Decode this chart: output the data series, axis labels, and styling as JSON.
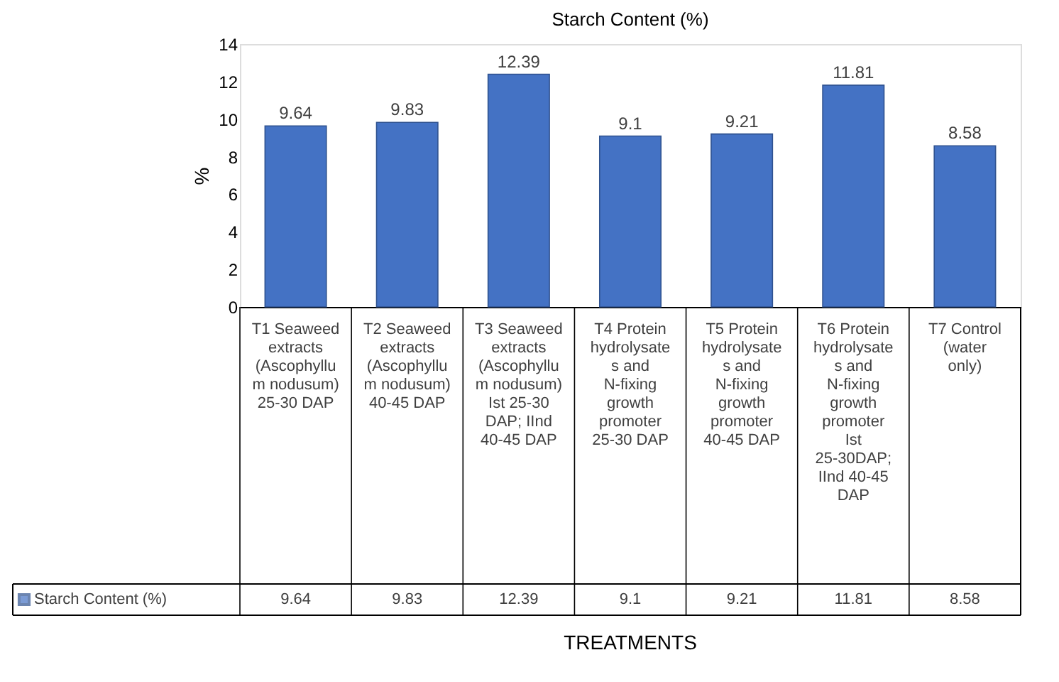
{
  "chart_data": {
    "type": "bar",
    "title": "Starch Content (%)",
    "ylabel": "%",
    "annotations": [
      "TREATMENTS"
    ],
    "categories": [
      "T1 Seaweed extracts (Ascophyllum nodusum) 25-30 DAP",
      "T2 Seaweed extracts (Ascophyllum nodusum) 40-45 DAP",
      "T3 Seaweed extracts (Ascophyllum nodusum) Ist 25-30 DAP; IInd 40-45 DAP",
      "T4 Protein hydrolysates and N-fixing growth promoter 25-30 DAP",
      "T5 Protein hydrolysates and N-fixing growth promoter 40-45 DAP",
      "T6 Protein hydrolysates and N-fixing growth promoter Ist 25-30DAP; IInd 40-45 DAP",
      "T7 Control (water only)"
    ],
    "series": [
      {
        "name": "Starch Content (%)",
        "color": "#4472c4",
        "values": [
          9.64,
          9.83,
          12.39,
          9.1,
          9.21,
          11.81,
          8.58
        ],
        "value_labels": [
          "9.64",
          "9.83",
          "12.39",
          "9.1",
          "9.21",
          "11.81",
          "8.58"
        ]
      }
    ],
    "ylim": [
      0,
      14
    ],
    "yticks": [
      0,
      2,
      4,
      6,
      8,
      10,
      12,
      14
    ],
    "data_labels": true,
    "grid": false,
    "legend": "bottom"
  }
}
